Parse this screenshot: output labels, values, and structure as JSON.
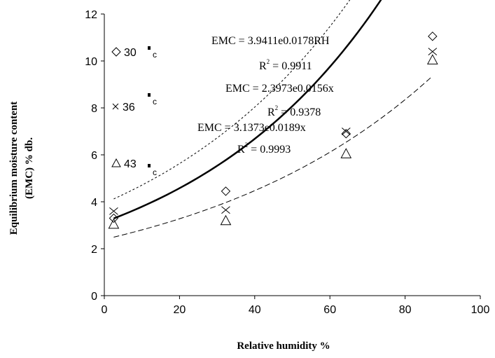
{
  "chart_data": {
    "type": "scatter",
    "xlabel": "Relative humidity %",
    "ylabel_lines": [
      "Equilibrium moisture content",
      "(EMC) % db."
    ],
    "xlim": [
      0,
      100
    ],
    "ylim": [
      0,
      12
    ],
    "xticks": [
      0,
      20,
      40,
      60,
      80,
      100
    ],
    "yticks": [
      0,
      2,
      4,
      6,
      8,
      10,
      12
    ],
    "grid": false,
    "legend_position": "left inside",
    "series": [
      {
        "name": "30",
        "unit_suffix": "c",
        "marker": "diamond",
        "x": [
          2.5,
          32.3,
          64.3,
          87.3
        ],
        "y": [
          3.3,
          4.45,
          6.9,
          11.05
        ],
        "fit": {
          "a": 3.9411,
          "b": 0.0178,
          "style": "short-dash"
        },
        "equation": "EMC = 3.9411e0.0178RH",
        "r2_label": "R",
        "r2_sup": "2",
        "r2_value": " = 0.9911"
      },
      {
        "name": "36",
        "unit_suffix": "c",
        "marker": "x",
        "x": [
          2.5,
          32.3,
          64.3,
          87.3
        ],
        "y": [
          3.6,
          3.65,
          7.0,
          10.4
        ],
        "fit": {
          "a": 2.3973,
          "b": 0.0156,
          "style": "long-dash"
        },
        "equation": "EMC = 2.3973e0.0156x",
        "r2_label": "R",
        "r2_sup": "2",
        "r2_value": " = 0.9378"
      },
      {
        "name": "43",
        "unit_suffix": "c",
        "marker": "triangle",
        "x": [
          2.5,
          32.3,
          64.3,
          87.3
        ],
        "y": [
          3.05,
          3.2,
          6.05,
          10.05
        ],
        "fit": {
          "a": 3.1373,
          "b": 0.0189,
          "style": "solid-thick"
        },
        "equation": "EMC = 3.1373e0.0189x",
        "r2_label": "R",
        "r2_sup": "2",
        "r2_value": " = 0.9993"
      }
    ]
  }
}
